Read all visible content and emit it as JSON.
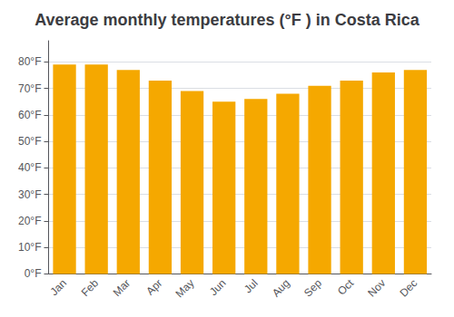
{
  "chart_data": {
    "type": "bar",
    "title": "Average monthly temperatures (°F ) in Costa Rica",
    "categories": [
      "Jan",
      "Feb",
      "Mar",
      "Apr",
      "May",
      "Jun",
      "Jul",
      "Aug",
      "Sep",
      "Oct",
      "Nov",
      "Dec"
    ],
    "values": [
      79,
      79,
      77,
      73,
      69,
      65,
      66,
      68,
      71,
      73,
      76,
      77
    ],
    "color": "#F5A800",
    "ylim": [
      0,
      88
    ],
    "yticks": [
      {
        "value": 0,
        "label": "0°F"
      },
      {
        "value": 10,
        "label": "10°F"
      },
      {
        "value": 20,
        "label": "20°F"
      },
      {
        "value": 30,
        "label": "30°F"
      },
      {
        "value": 40,
        "label": "40°F"
      },
      {
        "value": 50,
        "label": "50°F"
      },
      {
        "value": 60,
        "label": "60°F"
      },
      {
        "value": 70,
        "label": "70°F"
      },
      {
        "value": 80,
        "label": "80°F"
      }
    ],
    "grid": true
  }
}
